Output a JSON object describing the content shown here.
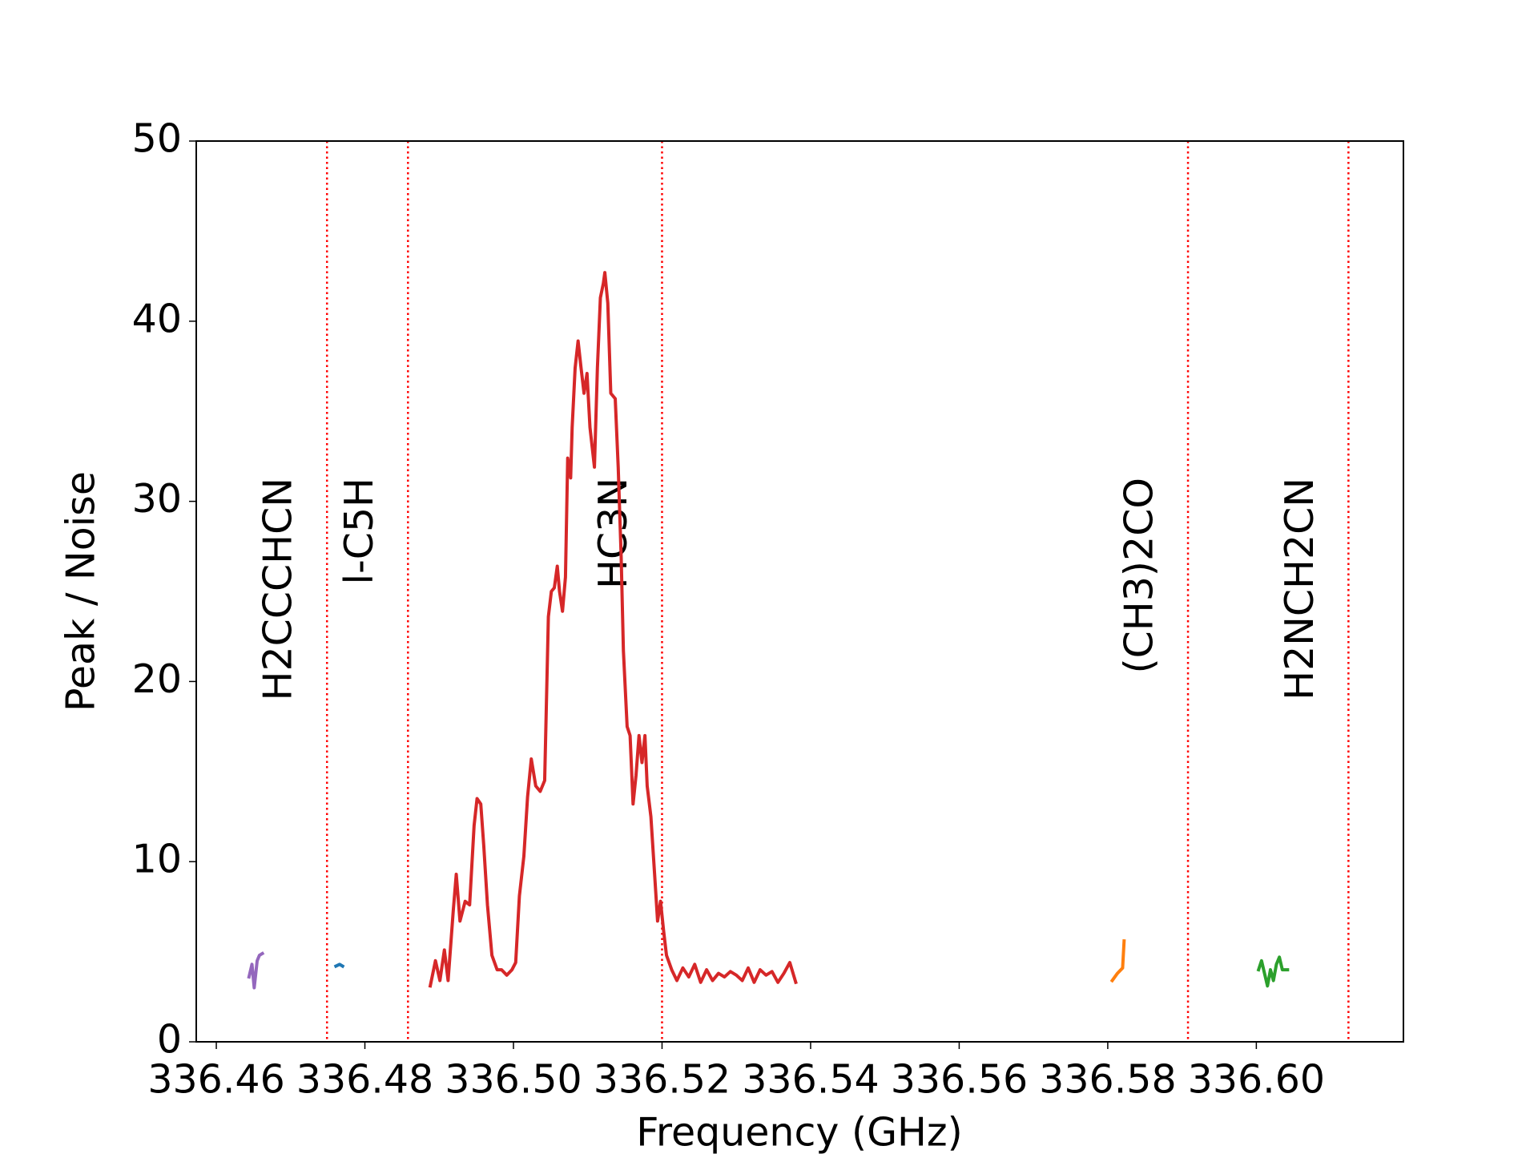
{
  "chart_data": {
    "type": "line",
    "xlabel": "Frequency (GHz)",
    "ylabel": "Peak / Noise",
    "xlim": [
      336.4573,
      336.6198
    ],
    "ylim": [
      0,
      50
    ],
    "xticks": [
      336.46,
      336.48,
      {
        "value": 336.5,
        "label": "336.50"
      },
      336.52,
      336.54,
      336.56,
      336.58,
      {
        "value": 336.6,
        "label": "336.60"
      }
    ],
    "yticks": [
      0,
      10,
      20,
      30,
      40,
      50
    ],
    "vlines_color": "#ff0000",
    "vlines": [
      {
        "x": 336.4749,
        "label": "H2CCCHCN"
      },
      {
        "x": 336.4858,
        "label": "l-C5H"
      },
      {
        "x": 336.52,
        "label": "HC3N"
      },
      {
        "x": 336.5908,
        "label": "(CH3)2CO"
      },
      {
        "x": 336.6124,
        "label": "H2NCH2CN"
      }
    ],
    "series": [
      {
        "color": "#9467bd",
        "x": [
          336.4644,
          336.4648,
          336.4651,
          336.4655,
          336.4658,
          336.4662
        ],
        "values": [
          3.6,
          4.3,
          3.0,
          4.5,
          4.8,
          4.9
        ]
      },
      {
        "color": "#1f77b4",
        "x": [
          336.4761,
          336.4766,
          336.477
        ],
        "values": [
          4.2,
          4.3,
          4.2
        ]
      },
      {
        "color": "#d62728",
        "x": [
          336.4888,
          336.4895,
          336.4901,
          336.4907,
          336.4912,
          336.4919,
          336.4923,
          336.4928,
          336.4935,
          336.4941,
          336.4947,
          336.4951,
          336.4956,
          336.496,
          336.4965,
          336.4971,
          336.4978,
          336.4984,
          336.4991,
          336.4998,
          336.5003,
          336.5008,
          336.5014,
          336.5019,
          336.5024,
          336.503,
          336.5036,
          336.5042,
          336.5047,
          336.5051,
          336.5055,
          336.5059,
          336.5062,
          336.5066,
          336.507,
          336.5073,
          336.5077,
          336.5079,
          336.5083,
          336.5087,
          336.5091,
          336.5095,
          336.5099,
          336.5103,
          336.5109,
          336.5113,
          336.5117,
          336.5121,
          336.5123,
          336.5127,
          336.5131,
          336.5137,
          336.5141,
          336.5145,
          336.5148,
          336.5153,
          336.5157,
          336.5161,
          336.5165,
          336.5169,
          336.5173,
          336.5177,
          336.518,
          336.5185,
          336.519,
          336.5194,
          336.5198,
          336.5202,
          336.5206,
          336.5213,
          336.522,
          336.5228,
          336.5236,
          336.5244,
          336.5252,
          336.526,
          336.5268,
          336.5276,
          336.5284,
          336.5292,
          336.53,
          336.5308,
          336.5316,
          336.5324,
          336.5332,
          336.534,
          336.5348,
          336.5356,
          336.5364,
          336.5372,
          336.538
        ],
        "values": [
          3.1,
          4.5,
          3.4,
          5.1,
          3.4,
          7.3,
          9.3,
          6.7,
          7.8,
          7.6,
          12.0,
          13.5,
          13.2,
          10.9,
          7.6,
          4.8,
          4.0,
          4.0,
          3.7,
          4.0,
          4.4,
          8.1,
          10.3,
          13.6,
          15.7,
          14.2,
          13.9,
          14.5,
          23.6,
          25.0,
          25.2,
          26.4,
          25.0,
          23.9,
          25.8,
          32.4,
          31.3,
          34.1,
          37.4,
          38.9,
          37.4,
          36.0,
          37.1,
          34.1,
          31.9,
          37.4,
          41.3,
          42.1,
          42.7,
          41.0,
          36.0,
          35.7,
          31.9,
          26.9,
          21.7,
          17.5,
          17.0,
          13.2,
          14.8,
          17.0,
          15.5,
          17.0,
          14.2,
          12.5,
          9.3,
          6.7,
          7.8,
          6.2,
          4.8,
          4.0,
          3.4,
          4.1,
          3.6,
          4.3,
          3.3,
          4.0,
          3.4,
          3.8,
          3.6,
          3.9,
          3.7,
          3.4,
          4.1,
          3.3,
          4.0,
          3.7,
          3.9,
          3.3,
          3.8,
          4.4,
          3.3
        ]
      },
      {
        "color": "#ff7f0e",
        "x": [
          336.5806,
          336.5813,
          336.582,
          336.5822
        ],
        "values": [
          3.4,
          3.8,
          4.1,
          5.6
        ]
      },
      {
        "color": "#2ca02c",
        "x": [
          336.6003,
          336.6007,
          336.6011,
          336.6015,
          336.6019,
          336.6023,
          336.6027,
          336.6031,
          336.6035,
          336.6042
        ],
        "values": [
          4.0,
          4.5,
          3.8,
          3.1,
          4.0,
          3.4,
          4.3,
          4.7,
          4.0,
          4.0
        ]
      }
    ]
  }
}
